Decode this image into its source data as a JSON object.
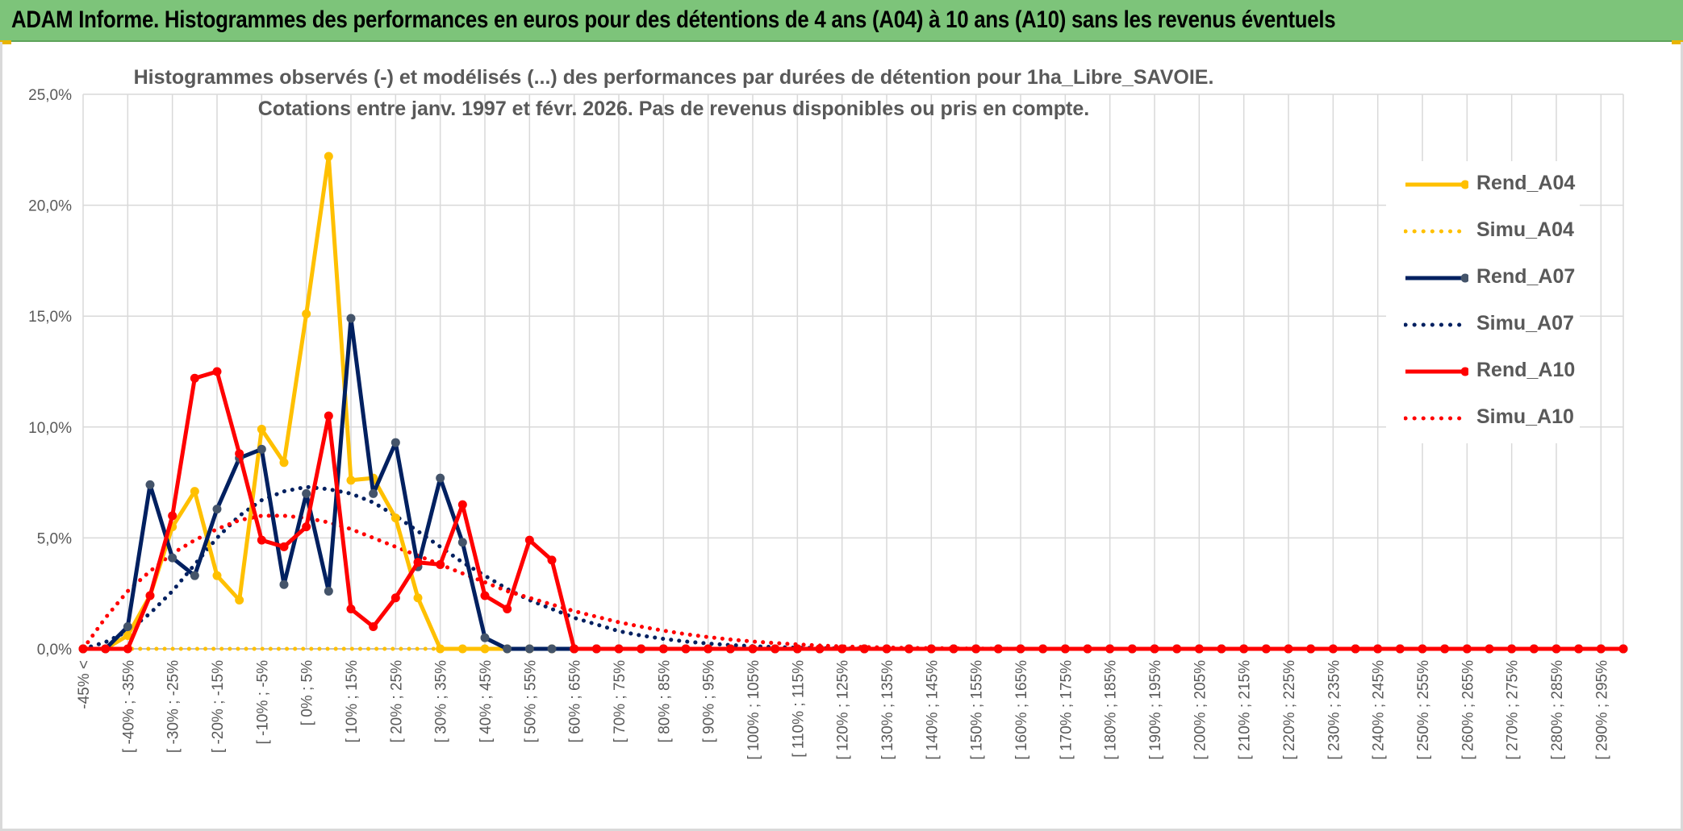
{
  "banner": {
    "title": "ADAM Informe. Histogrammes des performances en euros pour des détentions de 4 ans (A04) à 10 ans (A10) sans les revenus éventuels"
  },
  "colors": {
    "banner_bg": "#7dc47a",
    "gold": "#ffc000",
    "navy": "#002060",
    "navy_marker": "#44546a",
    "red": "#ff0000",
    "grid": "#d9d9d9"
  },
  "chart_data": {
    "type": "line",
    "title": "Histogrammes observés (-) et modélisés (...) des performances par durées de détention pour 1ha_Libre_SAVOIE.",
    "subtitle": "Cotations entre janv. 1997 et févr. 2026. Pas de revenus disponibles ou pris en compte.",
    "ylim": [
      0,
      25
    ],
    "yticks": [
      "0,0%",
      "5,0%",
      "10,0%",
      "15,0%",
      "20,0%",
      "25,0%"
    ],
    "grid": true,
    "legend_position": "right",
    "x_labels_shown": [
      "-45% <",
      "[ -40% ; -35%",
      "[ -30% ; -25%",
      "[ -20% ; -15%",
      "[ -10% ; -5%",
      "[ 0% ; 5%",
      "[ 10% ; 15%",
      "[ 20% ; 25%",
      "[ 30% ; 35%",
      "[ 40% ; 45%",
      "[ 50% ; 55%",
      "[ 60% ; 65%",
      "[ 70% ; 75%",
      "[ 80% ; 85%",
      "[ 90% ; 95%",
      "[ 100% ; 105%",
      "[ 110% ; 115%",
      "[ 120% ; 125%",
      "[ 130% ; 135%",
      "[ 140% ; 145%",
      "[ 150% ; 155%",
      "[ 160% ; 165%",
      "[ 170% ; 175%",
      "[ 180% ; 185%",
      "[ 190% ; 195%",
      "[ 200% ; 205%",
      "[ 210% ; 215%",
      "[ 220% ; 225%",
      "[ 230% ; 235%",
      "[ 240% ; 245%",
      "[ 250% ; 255%",
      "[ 260% ; 265%",
      "[ 270% ; 275%",
      "[ 280% ; 285%",
      "[ 290% ; 295%"
    ],
    "n_categories": 70,
    "series": [
      {
        "name": "Rend_A04",
        "style": "solid",
        "color": "#ffc000",
        "values": [
          0,
          0,
          0.6,
          2.4,
          5.5,
          7.1,
          3.3,
          2.2,
          9.9,
          8.4,
          15.1,
          22.2,
          7.6,
          7.7,
          5.9,
          2.3,
          0,
          0,
          0,
          0,
          0,
          0,
          0,
          0,
          0,
          0,
          0,
          0,
          0,
          0,
          0,
          0,
          0,
          0,
          0,
          0,
          0,
          0,
          0,
          0,
          0,
          0,
          0,
          0,
          0,
          0,
          0,
          0,
          0,
          0,
          0,
          0,
          0,
          0,
          0,
          0,
          0,
          0,
          0,
          0,
          0,
          0,
          0,
          0,
          0,
          0,
          0,
          0,
          0,
          0
        ]
      },
      {
        "name": "Simu_A04",
        "style": "dotted",
        "color": "#ffc000",
        "values": [
          0,
          0,
          0,
          0,
          0,
          0,
          0,
          0,
          0,
          0,
          0,
          0,
          0,
          0,
          0,
          0,
          0,
          0,
          0,
          0,
          0,
          0,
          0,
          0,
          0,
          0,
          0,
          0,
          0,
          0,
          0,
          0,
          0,
          0,
          0,
          0,
          0,
          0,
          0,
          0,
          0,
          0,
          0,
          0,
          0,
          0,
          0,
          0,
          0,
          0,
          0,
          0,
          0,
          0,
          0,
          0,
          0,
          0,
          0,
          0,
          0,
          0,
          0,
          0,
          0,
          0,
          0,
          0,
          0,
          0
        ]
      },
      {
        "name": "Rend_A07",
        "style": "solid",
        "color": "#002060",
        "values": [
          0,
          0,
          1.0,
          7.4,
          4.1,
          3.3,
          6.3,
          8.6,
          9.0,
          2.9,
          7.0,
          2.6,
          14.9,
          7.0,
          9.3,
          3.7,
          7.7,
          4.8,
          0.5,
          0,
          0,
          0,
          0,
          0,
          0,
          0,
          0,
          0,
          0,
          0,
          0,
          0,
          0,
          0,
          0,
          0,
          0,
          0,
          0,
          0,
          0,
          0,
          0,
          0,
          0,
          0,
          0,
          0,
          0,
          0,
          0,
          0,
          0,
          0,
          0,
          0,
          0,
          0,
          0,
          0,
          0,
          0,
          0,
          0,
          0,
          0,
          0,
          0,
          0,
          0
        ]
      },
      {
        "name": "Simu_A07",
        "style": "dotted",
        "color": "#002060",
        "values": [
          0,
          0.3,
          0.8,
          1.6,
          2.6,
          3.8,
          5.0,
          6.0,
          6.7,
          7.1,
          7.3,
          7.2,
          7.0,
          6.6,
          6.0,
          5.3,
          4.6,
          3.9,
          3.3,
          2.7,
          2.2,
          1.8,
          1.4,
          1.1,
          0.8,
          0.6,
          0.45,
          0.33,
          0.24,
          0.17,
          0.12,
          0.08,
          0.05,
          0.03,
          0.02,
          0.01,
          0,
          0,
          0,
          0,
          0,
          0,
          0,
          0,
          0,
          0,
          0,
          0,
          0,
          0,
          0,
          0,
          0,
          0,
          0,
          0,
          0,
          0,
          0,
          0,
          0,
          0,
          0,
          0,
          0,
          0,
          0,
          0,
          0,
          0
        ]
      },
      {
        "name": "Rend_A10",
        "style": "solid",
        "color": "#ff0000",
        "values": [
          0,
          0,
          0,
          2.4,
          6.0,
          12.2,
          12.5,
          8.8,
          4.9,
          4.6,
          5.5,
          10.5,
          1.8,
          1.0,
          2.3,
          3.9,
          3.8,
          6.5,
          2.4,
          1.8,
          4.9,
          4.0,
          0,
          0,
          0,
          0,
          0,
          0,
          0,
          0,
          0,
          0,
          0,
          0,
          0,
          0,
          0,
          0,
          0,
          0,
          0,
          0,
          0,
          0,
          0,
          0,
          0,
          0,
          0,
          0,
          0,
          0,
          0,
          0,
          0,
          0,
          0,
          0,
          0,
          0,
          0,
          0,
          0,
          0,
          0,
          0,
          0,
          0,
          0,
          0
        ]
      },
      {
        "name": "Simu_A10",
        "style": "dotted",
        "color": "#ff0000",
        "values": [
          0,
          1.4,
          2.6,
          3.5,
          4.3,
          4.9,
          5.4,
          5.8,
          6.0,
          6.0,
          5.9,
          5.7,
          5.4,
          5.0,
          4.6,
          4.2,
          3.8,
          3.4,
          3.0,
          2.6,
          2.3,
          2.0,
          1.7,
          1.45,
          1.2,
          1.0,
          0.82,
          0.66,
          0.53,
          0.42,
          0.33,
          0.26,
          0.2,
          0.15,
          0.11,
          0.08,
          0.06,
          0.04,
          0.03,
          0.02,
          0.01,
          0.01,
          0,
          0,
          0,
          0,
          0,
          0,
          0,
          0,
          0,
          0,
          0,
          0,
          0,
          0,
          0,
          0,
          0,
          0,
          0,
          0,
          0,
          0,
          0,
          0,
          0,
          0,
          0,
          0
        ]
      }
    ]
  }
}
